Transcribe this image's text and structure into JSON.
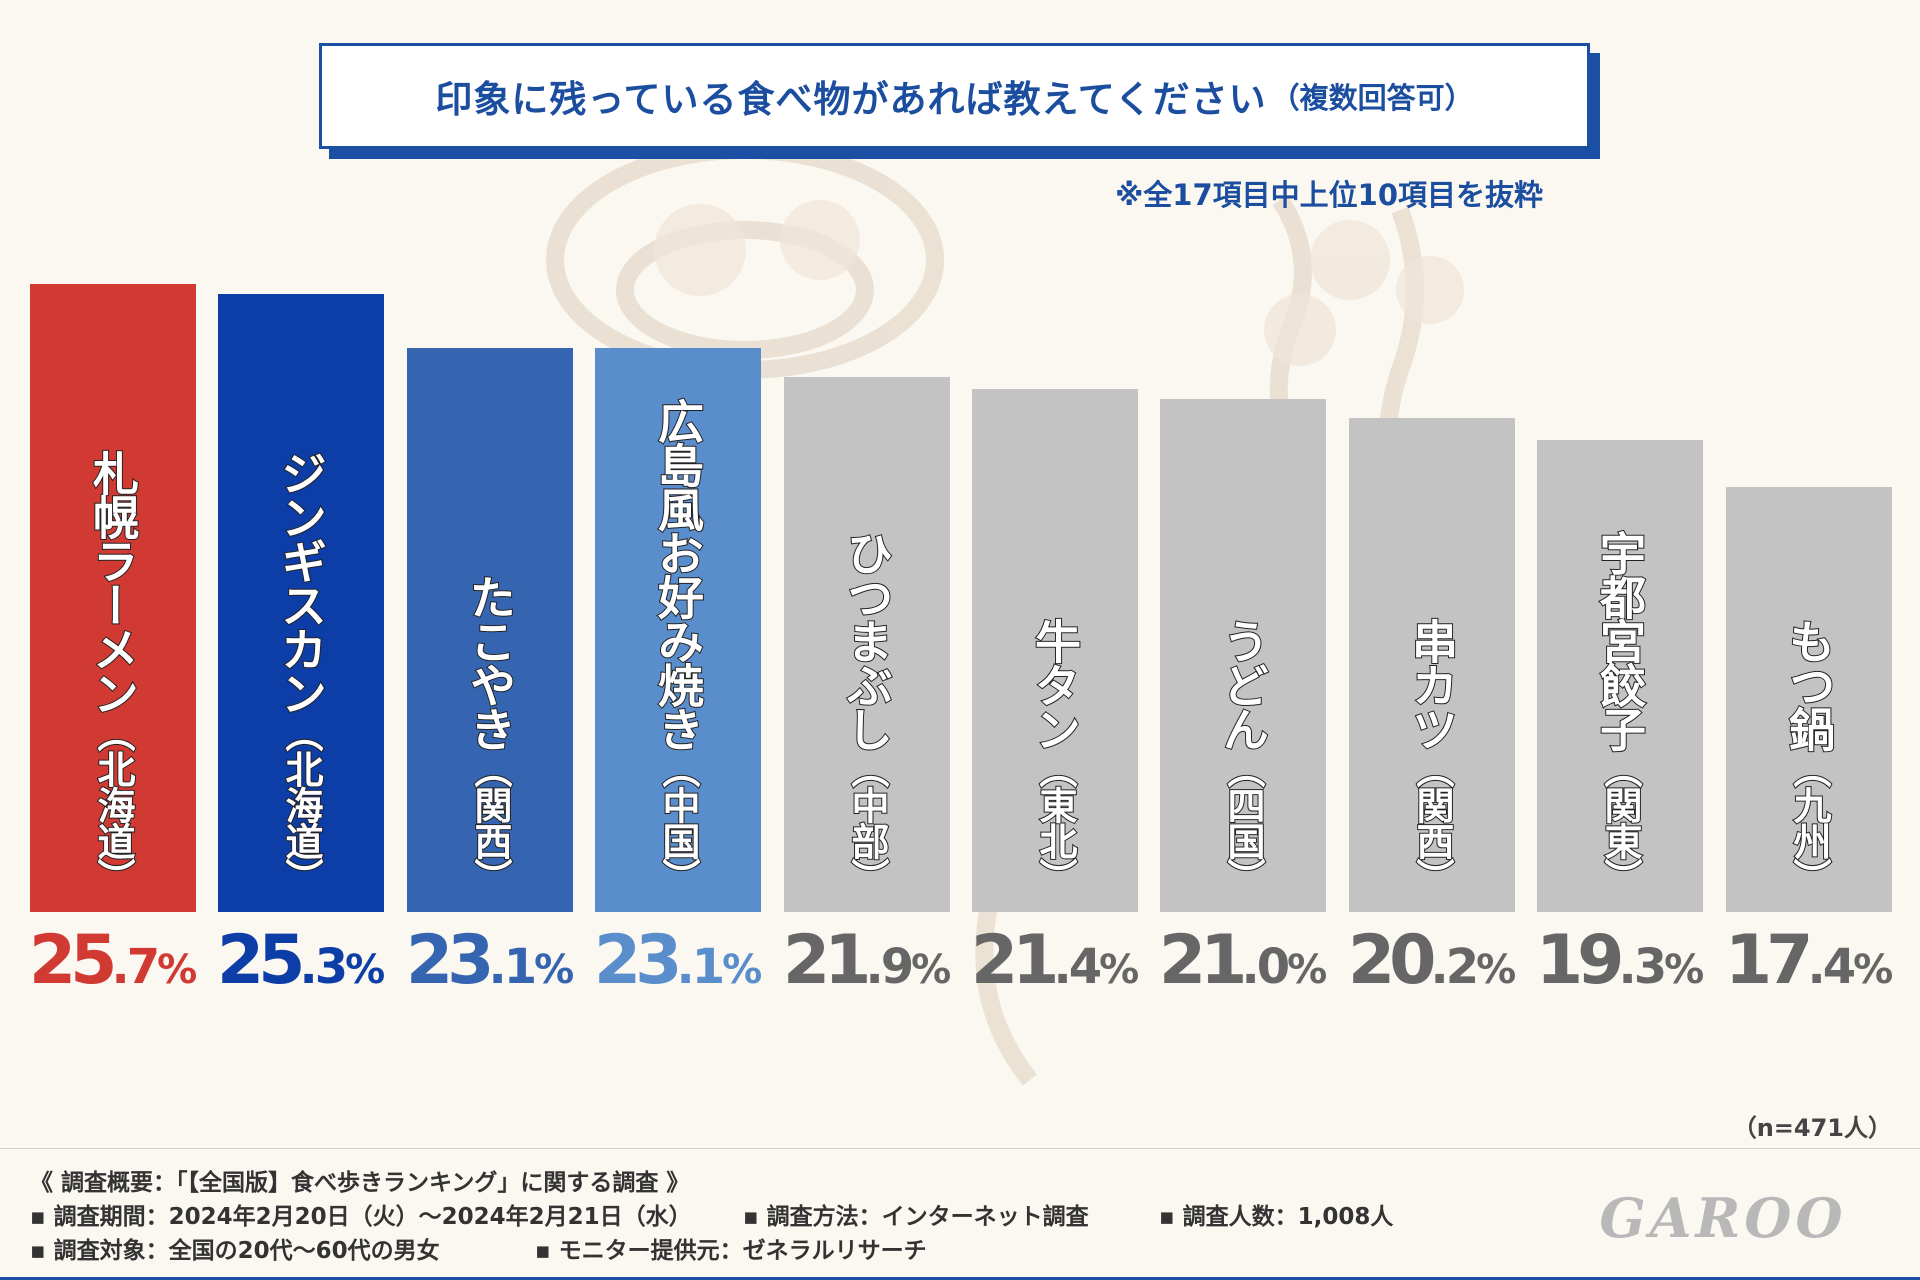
{
  "header": {
    "title": "印象に残っている食べ物があれば教えてください",
    "title_note": "（複数回答可）",
    "subnote": "※全17項目中上位10項目を抜粋"
  },
  "chart_data": {
    "type": "bar",
    "title": "印象に残っている食べ物があれば教えてください（複数回答可）",
    "unit": "%",
    "ylim": [
      0,
      25.7
    ],
    "items": [
      {
        "name": "札幌ラーメン",
        "region": "北海道",
        "value": 25.7,
        "color": "#d13a33",
        "text_color": "#d13a33"
      },
      {
        "name": "ジンギスカン",
        "region": "北海道",
        "value": 25.3,
        "color": "#0d3ea8",
        "text_color": "#0d3ea8"
      },
      {
        "name": "たこやき",
        "region": "関西",
        "value": 23.1,
        "color": "#3565b0",
        "text_color": "#3565b0"
      },
      {
        "name": "広島風お好み焼き",
        "region": "中国",
        "value": 23.1,
        "color": "#5a8dcb",
        "text_color": "#5a8dcb"
      },
      {
        "name": "ひつまぶし",
        "region": "中部",
        "value": 21.9,
        "color": "#c3c3c3",
        "text_color": "#666666"
      },
      {
        "name": "牛タン",
        "region": "東北",
        "value": 21.4,
        "color": "#c3c3c3",
        "text_color": "#666666"
      },
      {
        "name": "うどん",
        "region": "四国",
        "value": 21.0,
        "color": "#c3c3c3",
        "text_color": "#666666"
      },
      {
        "name": "串カツ",
        "region": "関西",
        "value": 20.2,
        "color": "#c3c3c3",
        "text_color": "#666666"
      },
      {
        "name": "宇都宮餃子",
        "region": "関東",
        "value": 19.3,
        "color": "#c3c3c3",
        "text_color": "#666666"
      },
      {
        "name": "もつ鍋",
        "region": "九州",
        "value": 17.4,
        "color": "#c3c3c3",
        "text_color": "#666666"
      }
    ]
  },
  "sample_size": "（n=471人）",
  "footer": {
    "summary": "《 調査概要：「【全国版】食べ歩きランキング」に関する調査 》",
    "period": "▪ 調査期間：2024年2月20日（火）～2024年2月21日（水）",
    "method": "▪ 調査方法：インターネット調査",
    "count": "▪ 調査人数：1,008人",
    "target": "▪ 調査対象：全国の20代～60代の男女",
    "provider": "▪ モニター提供元：ゼネラルリサーチ"
  },
  "logo_text": "GAROO"
}
